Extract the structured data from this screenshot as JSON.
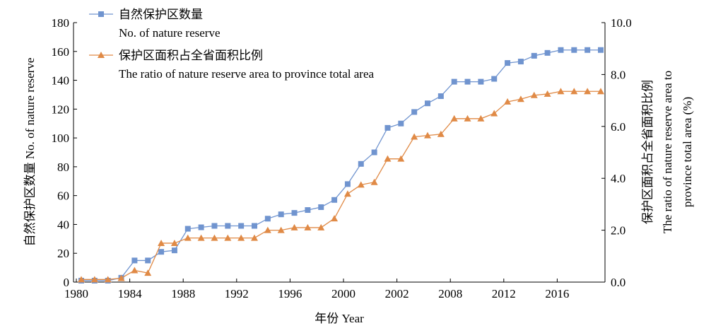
{
  "chart_data": {
    "type": "line",
    "xlabel": "年份 Year",
    "ylabel_left": "自然保护区数量 No. of nature reserve",
    "ylabel_right_lines": [
      "保护区面积占全省面积比例",
      "The ratio of nature reserve area to",
      "province total area (%)"
    ],
    "x_ticks": [
      "1980",
      "1984",
      "1988",
      "1992",
      "1996",
      "2000",
      "2002",
      "2008",
      "2012",
      "2016"
    ],
    "y_left_ticks": [
      "0",
      "20",
      "40",
      "60",
      "80",
      "100",
      "120",
      "140",
      "160",
      "180"
    ],
    "y_right_ticks": [
      "0.0",
      "2.0",
      "4.0",
      "6.0",
      "8.0",
      "10.0"
    ],
    "ylim_left": [
      0,
      180
    ],
    "ylim_right": [
      0,
      10
    ],
    "legend_position": "top-left",
    "series": [
      {
        "name_cn": "自然保护区数量",
        "name_en": "No. of nature reserve",
        "axis": "left",
        "color": "#7094cf",
        "marker": "square",
        "values": [
          1,
          1,
          1,
          3,
          15,
          15,
          21,
          22,
          37,
          38,
          39,
          39,
          39,
          39,
          44,
          47,
          48,
          50,
          52,
          57,
          68,
          82,
          90,
          107,
          110,
          118,
          124,
          129,
          139,
          139,
          139,
          141,
          152,
          153,
          157,
          159,
          161,
          161,
          161,
          161
        ]
      },
      {
        "name_cn": "保护区面积占全省面积比例",
        "name_en": "The ratio of nature reserve area to province total area",
        "axis": "right",
        "color": "#e08a46",
        "marker": "triangle",
        "values": [
          0.1,
          0.1,
          0.1,
          0.15,
          0.45,
          0.35,
          1.5,
          1.5,
          1.7,
          1.7,
          1.7,
          1.7,
          1.7,
          1.7,
          2.0,
          2.0,
          2.1,
          2.1,
          2.1,
          2.45,
          3.4,
          3.75,
          3.85,
          4.75,
          4.75,
          5.6,
          5.65,
          5.7,
          6.3,
          6.3,
          6.3,
          6.5,
          6.95,
          7.05,
          7.2,
          7.25,
          7.35,
          7.35,
          7.35,
          7.35
        ]
      }
    ]
  }
}
